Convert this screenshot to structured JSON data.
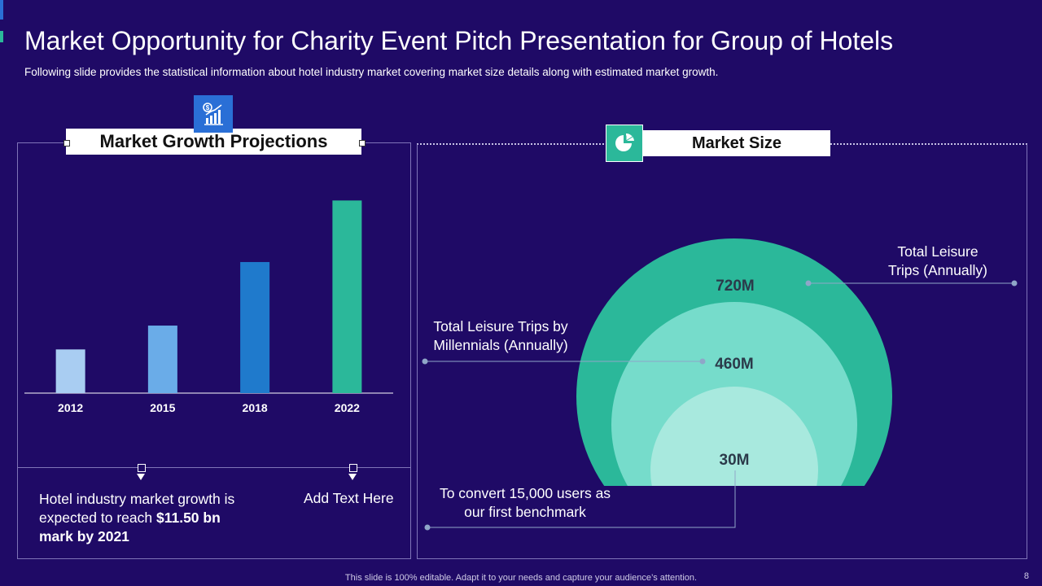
{
  "slide": {
    "title": "Market Opportunity for Charity Event Pitch Presentation for Group of Hotels",
    "subtitle": "Following slide provides the statistical information about hotel industry market covering market size details along with estimated market growth.",
    "footer": "This slide is 100% editable. Adapt it to your needs and capture your audience’s attention.",
    "page_number": "8"
  },
  "left_panel": {
    "heading": "Market Growth Projections",
    "icon": "money-chart-icon",
    "note_prefix": "Hotel industry market growth is expected to reach ",
    "note_bold": "$11.50 bn mark by 2021",
    "note_right": "Add Text Here"
  },
  "right_panel": {
    "heading": "Market Size",
    "icon": "pie-chart-icon",
    "callouts": {
      "outer": "Total Leisure Trips (Annually)",
      "middle": "Total Leisure Trips by Millennials (Annually)",
      "inner": "To convert 15,000 users as our first benchmark"
    },
    "colors": {
      "outer": "#2bb89a",
      "middle": "#76dccb",
      "inner": "#a8e9de"
    }
  },
  "chart_data": [
    {
      "type": "bar",
      "title": "Market Growth Projections",
      "categories": [
        "2012",
        "2015",
        "2018",
        "2022"
      ],
      "values": [
        22,
        34,
        66,
        97
      ],
      "ylim": [
        0,
        100
      ],
      "xlabel": "",
      "ylabel": "",
      "colors": [
        "#a9cdf2",
        "#6aace8",
        "#1f7acc",
        "#2bb89a"
      ],
      "grid": false
    },
    {
      "type": "nested-circles",
      "title": "Market Size",
      "categories": [
        "Total Leisure Trips (Annually)",
        "Total Leisure Trips by Millennials (Annually)",
        "To convert 15,000 users as our first benchmark"
      ],
      "labels": [
        "720M",
        "460M",
        "30M"
      ],
      "values": [
        720,
        460,
        30
      ]
    }
  ]
}
